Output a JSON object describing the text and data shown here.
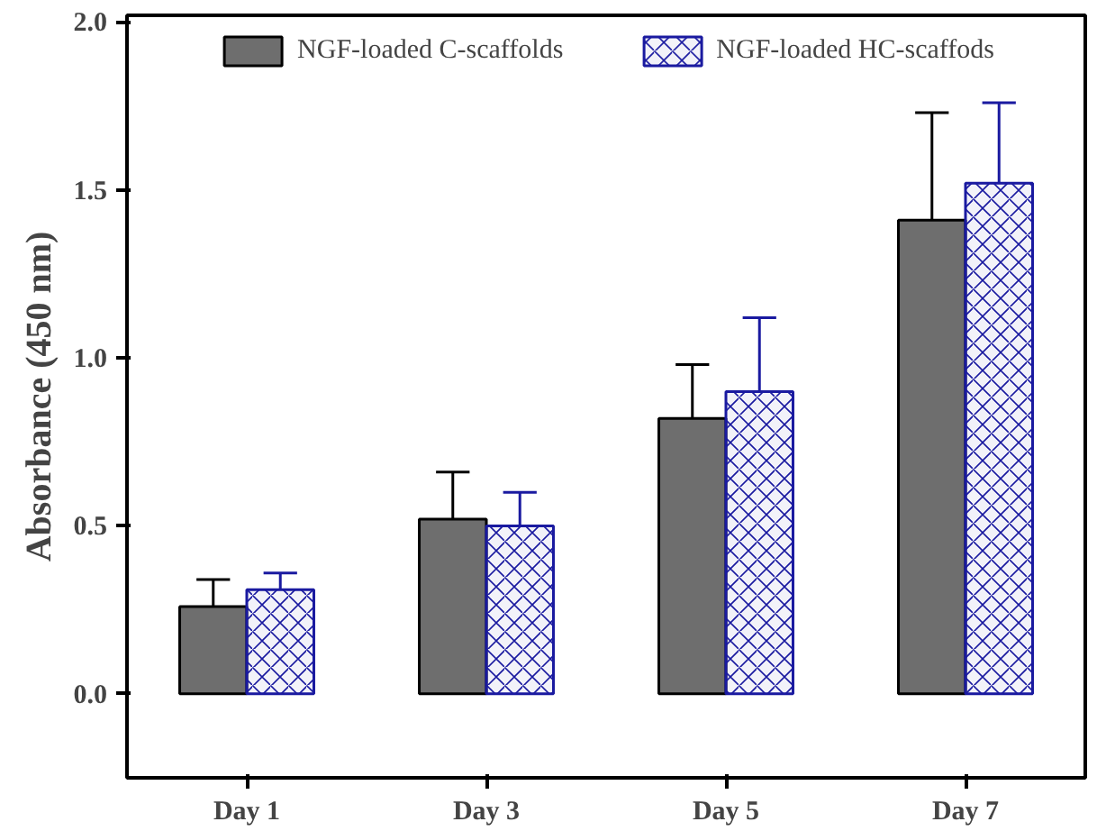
{
  "chart_data": {
    "type": "bar",
    "ylabel": "Absorbance (450 nm)",
    "categories": [
      "Day 1",
      "Day 3",
      "Day 5",
      "Day 7"
    ],
    "series": [
      {
        "name": "NGF-loaded C-scaffolds",
        "color": "#6e6e6e",
        "values": [
          0.26,
          0.52,
          0.82,
          1.41
        ],
        "errors": [
          [
            0.26,
            0.34
          ],
          [
            0.52,
            0.66
          ],
          [
            0.82,
            0.98
          ],
          [
            1.41,
            1.73
          ]
        ]
      },
      {
        "name": "NGF-loaded HC-scaffods",
        "color": "#1a1aa0",
        "values": [
          0.31,
          0.5,
          0.9,
          1.52
        ],
        "errors": [
          [
            0.31,
            0.36
          ],
          [
            0.5,
            0.6
          ],
          [
            0.9,
            1.12
          ],
          [
            1.52,
            1.76
          ]
        ]
      }
    ],
    "ylim": [
      -0.25,
      2.02
    ],
    "yticks": [
      {
        "value": 0,
        "label": "0.0"
      },
      {
        "value": 0.5,
        "label": "0.5"
      },
      {
        "value": 1,
        "label": "1.0"
      },
      {
        "value": 1.5,
        "label": "1.5"
      },
      {
        "value": 2,
        "label": "2.0"
      }
    ],
    "grid": false,
    "legend": "top"
  }
}
